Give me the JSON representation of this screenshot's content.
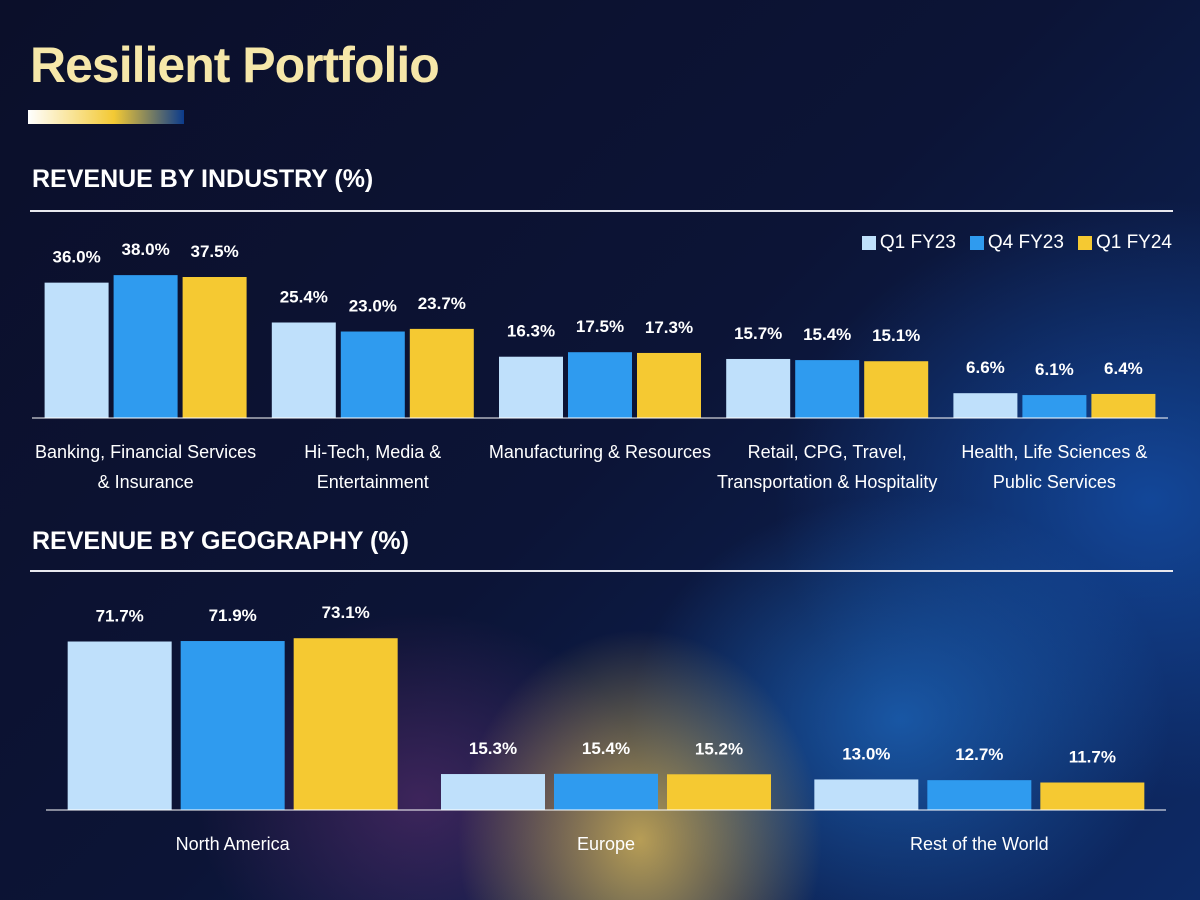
{
  "page_title": "Resilient Portfolio",
  "chart_data": [
    {
      "type": "bar",
      "title": "REVENUE BY INDUSTRY (%)",
      "legend": "top-right",
      "categories": [
        "Banking, Financial Services & Insurance",
        "Hi-Tech, Media & Entertainment",
        "Manufacturing & Resources",
        "Retail, CPG, Travel, Transportation & Hospitality",
        "Health, Life Sciences & Public Services"
      ],
      "series": [
        {
          "name": "Q1 FY23",
          "color": "#bfe0fb",
          "values": [
            36.0,
            25.4,
            16.3,
            15.7,
            6.6
          ],
          "value_labels": [
            "36.0%",
            "25.4%",
            "16.3%",
            "15.7%",
            "6.6%"
          ]
        },
        {
          "name": "Q4 FY23",
          "color": "#2f9bef",
          "values": [
            38.0,
            23.0,
            17.5,
            15.4,
            6.1
          ],
          "value_labels": [
            "38.0%",
            "23.0%",
            "17.5%",
            "15.4%",
            "6.1%"
          ]
        },
        {
          "name": "Q1 FY24",
          "color": "#f5c932",
          "values": [
            37.5,
            23.7,
            17.3,
            15.1,
            6.4
          ],
          "value_labels": [
            "37.5%",
            "23.7%",
            "17.3%",
            "15.1%",
            "6.4%"
          ]
        }
      ]
    },
    {
      "type": "bar",
      "title": "REVENUE BY GEOGRAPHY (%)",
      "categories": [
        "North America",
        "Europe",
        "Rest of the World"
      ],
      "series": [
        {
          "color": "#bfe0fb",
          "values": [
            71.7,
            15.3,
            13.0
          ],
          "value_labels": [
            "71.7%",
            "15.3%",
            "13.0%"
          ]
        },
        {
          "color": "#2f9bef",
          "values": [
            71.9,
            15.4,
            12.7
          ],
          "value_labels": [
            "71.9%",
            "15.4%",
            "12.7%"
          ]
        },
        {
          "color": "#f5c932",
          "values": [
            73.1,
            15.2,
            11.7
          ],
          "value_labels": [
            "73.1%",
            "15.2%",
            "11.7%"
          ]
        }
      ]
    }
  ]
}
